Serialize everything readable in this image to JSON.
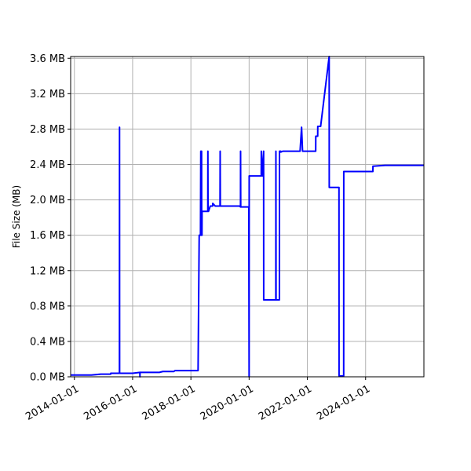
{
  "chart_data": {
    "type": "line",
    "title": "",
    "xlabel": "",
    "ylabel": "File Size (MB)",
    "grid": true,
    "legend": "none",
    "xlim": [
      "2013-11-15",
      "2026-01-01"
    ],
    "ylim": [
      0.0,
      3.62
    ],
    "x_ticks": [
      "2014-01-01",
      "2016-01-01",
      "2018-01-01",
      "2020-01-01",
      "2022-01-01",
      "2024-01-01"
    ],
    "y_ticks": [
      0.0,
      0.4,
      0.8,
      1.2,
      1.6,
      2.0,
      2.4,
      2.8,
      3.2,
      3.6
    ],
    "y_tick_labels": [
      "0.0 MB",
      "0.4 MB",
      "0.8 MB",
      "1.2 MB",
      "1.6 MB",
      "2.0 MB",
      "2.4 MB",
      "2.8 MB",
      "3.2 MB",
      "3.6 MB"
    ],
    "series": [
      {
        "color": "#0000ff",
        "x": [
          "2013-11-15",
          "2014-08-01",
          "2014-08-02",
          "2014-12-01",
          "2015-04-01",
          "2015-04-02",
          "2015-07-20",
          "2015-07-21",
          "2015-07-22",
          "2015-07-24",
          "2015-07-25",
          "2016-01-01",
          "2016-04-01",
          "2016-04-02",
          "2016-04-03",
          "2016-04-04",
          "2016-12-01",
          "2017-01-15",
          "2017-06-01",
          "2017-06-15",
          "2018-01-01",
          "2018-04-01",
          "2018-04-15",
          "2018-05-01",
          "2018-05-05",
          "2018-05-06",
          "2018-05-10",
          "2018-05-11",
          "2018-05-15",
          "2018-05-16",
          "2018-05-20",
          "2018-05-21",
          "2018-05-25",
          "2018-06-01",
          "2018-08-01",
          "2018-08-02",
          "2018-08-04",
          "2018-08-05",
          "2018-08-10",
          "2018-09-01",
          "2018-10-01",
          "2018-10-02",
          "2018-11-01",
          "2019-01-01",
          "2019-01-03",
          "2019-01-05",
          "2019-09-01",
          "2019-09-15",
          "2019-09-16",
          "2019-09-18",
          "2019-10-01",
          "2019-11-15",
          "2019-12-28",
          "2020-01-01",
          "2020-01-02",
          "2020-01-04",
          "2020-02-15",
          "2020-06-01",
          "2020-06-02",
          "2020-06-15",
          "2020-07-01",
          "2020-07-02",
          "2020-09-01",
          "2020-12-01",
          "2020-12-02",
          "2020-12-04",
          "2021-01-15",
          "2021-01-16",
          "2021-02-01",
          "2021-02-02",
          "2021-03-01",
          "2021-06-15",
          "2021-10-01",
          "2021-10-20",
          "2021-11-01",
          "2022-04-15",
          "2022-04-16",
          "2022-05-10",
          "2022-05-11",
          "2022-06-15",
          "2022-06-16",
          "2022-10-01",
          "2022-10-02",
          "2023-02-01",
          "2023-02-02",
          "2023-03-01",
          "2023-04-01",
          "2023-04-02",
          "2024-04-01",
          "2024-04-02",
          "2024-09-01",
          "2026-01-01"
        ],
        "y": [
          0.02,
          0.02,
          0.02,
          0.03,
          0.03,
          0.04,
          0.04,
          2.82,
          0.04,
          0.04,
          0.04,
          0.04,
          0.05,
          0.0,
          0.05,
          0.05,
          0.05,
          0.06,
          0.06,
          0.07,
          0.07,
          0.07,
          1.6,
          1.6,
          2.55,
          1.6,
          2.55,
          1.6,
          2.55,
          1.6,
          1.6,
          1.87,
          1.87,
          1.87,
          1.87,
          2.55,
          1.87,
          1.87,
          1.87,
          1.93,
          1.93,
          1.96,
          1.93,
          1.93,
          2.55,
          1.93,
          1.93,
          1.92,
          2.55,
          1.92,
          1.92,
          1.92,
          1.92,
          0.0,
          2.27,
          2.27,
          2.27,
          2.27,
          2.55,
          2.27,
          2.55,
          0.87,
          0.87,
          0.87,
          2.55,
          0.87,
          0.87,
          2.55,
          2.55,
          2.54,
          2.55,
          2.55,
          2.55,
          2.82,
          2.55,
          2.55,
          2.72,
          2.72,
          2.83,
          2.83,
          2.83,
          3.62,
          2.14,
          2.14,
          0.01,
          0.01,
          0.01,
          2.32,
          2.32,
          2.38,
          2.39,
          2.39
        ]
      }
    ]
  }
}
